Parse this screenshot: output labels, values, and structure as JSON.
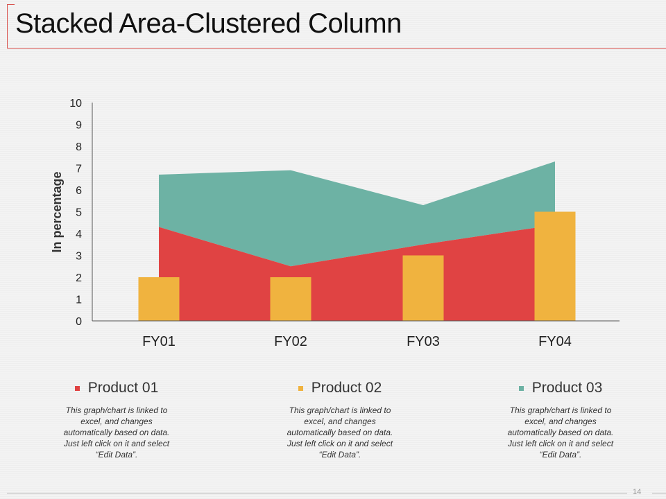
{
  "slide": {
    "title": "Stacked Area-Clustered Column",
    "page_number": "14"
  },
  "colors": {
    "product01": "#e04343",
    "product02": "#f0b33f",
    "product03": "#6db2a4",
    "accent_line": "#d9534f"
  },
  "chart_data": {
    "type": "area+bar",
    "categories": [
      "FY01",
      "FY02",
      "FY03",
      "FY04"
    ],
    "ylabel": "In percentage",
    "ylim": [
      0,
      10
    ],
    "yticks": [
      "0",
      "1",
      "2",
      "3",
      "4",
      "5",
      "6",
      "7",
      "8",
      "9",
      "10"
    ],
    "series": [
      {
        "name": "Product 01",
        "type": "stacked-area",
        "values": [
          4.3,
          2.5,
          3.5,
          4.4
        ]
      },
      {
        "name": "Product 03",
        "type": "stacked-area",
        "values": [
          2.4,
          4.4,
          1.8,
          2.9
        ]
      },
      {
        "name": "Product 02",
        "type": "column",
        "values": [
          2,
          2,
          3,
          5
        ]
      }
    ],
    "legend_position": "bottom"
  },
  "legend": [
    {
      "label": "Product 01",
      "description": "This graph/chart is linked to excel, and changes automatically based on data. Just left click on it and select “Edit Data”."
    },
    {
      "label": "Product 02",
      "description": "This graph/chart is linked to excel, and changes automatically based on data. Just left click on it and select “Edit Data”."
    },
    {
      "label": "Product 03",
      "description": "This graph/chart is linked to excel, and changes automatically based on data. Just left click on it and select “Edit Data”."
    }
  ]
}
